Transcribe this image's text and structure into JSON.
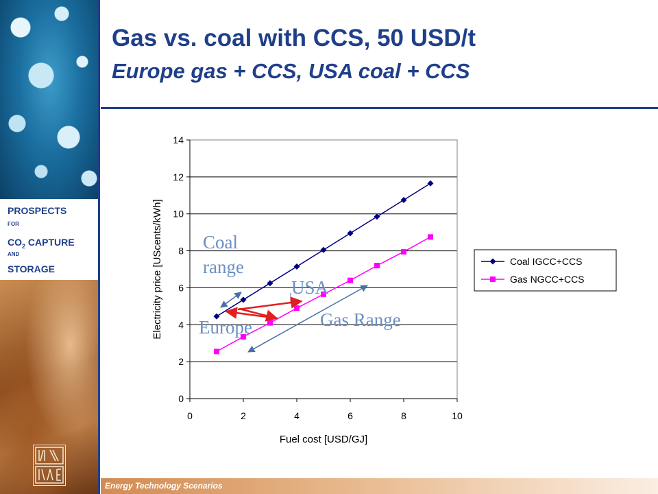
{
  "slide": {
    "title": "Gas vs. coal with CCS, 50 USD/t",
    "subtitle": "Europe gas + CCS, USA coal + CCS",
    "footer": "Energy Technology Scenarios"
  },
  "sidebar": {
    "line1": "PROSPECTS",
    "line2": "FOR",
    "line3_prefix": "CO",
    "line3_sub": "2",
    "line3_suffix": " CAPTURE",
    "line4": "AND",
    "line5": "STORAGE"
  },
  "colors": {
    "navy": "#1f3f8a",
    "coal_series": "#000080",
    "gas_series": "#ff00ff",
    "annotation": "#6b8fc4",
    "red_arrows": "#e02020"
  },
  "chart_data": {
    "type": "line",
    "xlabel": "Fuel cost [USD/GJ]",
    "ylabel": "Electricity price [UScents/kWh]",
    "xlim": [
      0,
      10
    ],
    "ylim": [
      0,
      14
    ],
    "xticks": [
      0,
      2,
      4,
      6,
      8,
      10
    ],
    "yticks": [
      0,
      2,
      4,
      6,
      8,
      10,
      12,
      14
    ],
    "grid": "horizontal",
    "legend": "right",
    "series": [
      {
        "name": "Coal IGCC+CCS",
        "marker": "diamond",
        "color": "#000080",
        "x": [
          1,
          2,
          3,
          4,
          5,
          6,
          7,
          8,
          9
        ],
        "y": [
          4.45,
          5.35,
          6.25,
          7.15,
          8.05,
          8.95,
          9.85,
          10.75,
          11.65
        ]
      },
      {
        "name": "Gas NGCC+CCS",
        "marker": "square",
        "color": "#ff00ff",
        "x": [
          1,
          2,
          3,
          4,
          5,
          6,
          7,
          8,
          9
        ],
        "y": [
          2.55,
          3.35,
          4.1,
          4.9,
          5.65,
          6.4,
          7.2,
          7.95,
          8.75
        ]
      }
    ],
    "annotations": [
      {
        "id": "coal-range",
        "lines": [
          "Coal",
          "range"
        ]
      },
      {
        "id": "usa",
        "text": "USA"
      },
      {
        "id": "europe",
        "text": "Europe"
      },
      {
        "id": "gas-range",
        "text": "Gas Range"
      }
    ]
  }
}
